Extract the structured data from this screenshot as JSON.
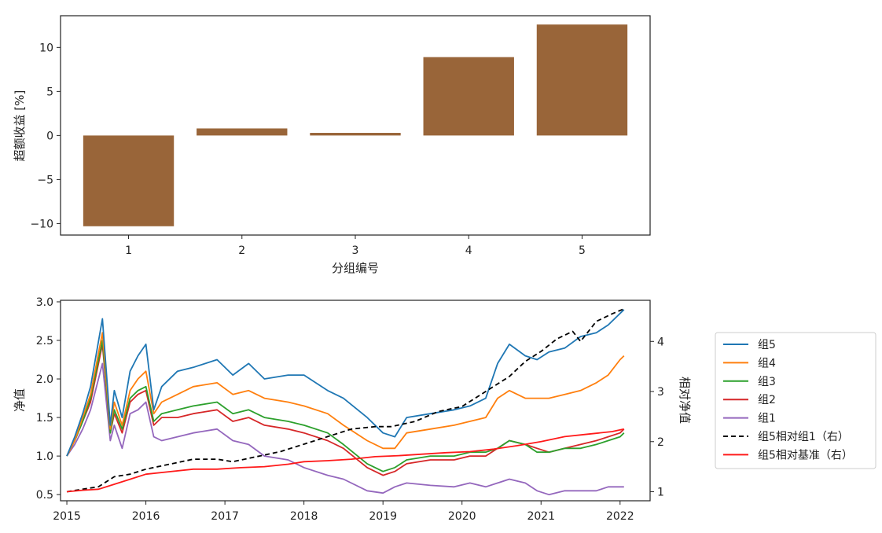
{
  "chart_data": [
    {
      "type": "bar",
      "xlabel": "分组编号",
      "ylabel": "超额收益 [%]",
      "categories": [
        "1",
        "2",
        "3",
        "4",
        "5"
      ],
      "values": [
        -10.3,
        0.8,
        0.3,
        8.9,
        12.6
      ],
      "ylim": [
        -11.3,
        13.6
      ],
      "yticks": [
        -10,
        -5,
        0,
        5,
        10
      ],
      "yticklabels": [
        "−10",
        "−5",
        "0",
        "5",
        "10"
      ],
      "bar_color": "#996539",
      "grid": false
    },
    {
      "type": "line",
      "xlabel": "",
      "ylabel": "净值",
      "y2label": "相对净值",
      "xlim": [
        2014.92,
        2022.38
      ],
      "ylim": [
        0.42,
        3.02
      ],
      "y2lim": [
        0.82,
        4.82
      ],
      "xticks": [
        2015,
        2016,
        2017,
        2018,
        2019,
        2020,
        2021,
        2022
      ],
      "xticklabels": [
        "2015",
        "2016",
        "2017",
        "2018",
        "2019",
        "2020",
        "2021",
        "2022"
      ],
      "yticks": [
        0.5,
        1.0,
        1.5,
        2.0,
        2.5,
        3.0
      ],
      "yticklabels": [
        "0.5",
        "1.0",
        "1.5",
        "2.0",
        "2.5",
        "3.0"
      ],
      "y2ticks": [
        1,
        2,
        3,
        4
      ],
      "y2ticklabels": [
        "1",
        "2",
        "3",
        "4"
      ],
      "legend_position": "outside-right",
      "grid": false,
      "series": [
        {
          "name": "组5",
          "axis": "left",
          "color": "#1f77b4",
          "style": "solid",
          "x": [
            2015.0,
            2015.1,
            2015.2,
            2015.3,
            2015.45,
            2015.55,
            2015.6,
            2015.7,
            2015.8,
            2015.9,
            2016.0,
            2016.1,
            2016.2,
            2016.4,
            2016.6,
            2016.9,
            2017.1,
            2017.3,
            2017.5,
            2017.8,
            2018.0,
            2018.3,
            2018.5,
            2018.8,
            2019.0,
            2019.15,
            2019.3,
            2019.6,
            2019.9,
            2020.1,
            2020.3,
            2020.45,
            2020.6,
            2020.8,
            2020.95,
            2021.1,
            2021.3,
            2021.5,
            2021.7,
            2021.85,
            2022.0,
            2022.05
          ],
          "y": [
            1.0,
            1.25,
            1.55,
            1.9,
            2.78,
            1.4,
            1.85,
            1.5,
            2.1,
            2.3,
            2.45,
            1.6,
            1.9,
            2.1,
            2.15,
            2.25,
            2.05,
            2.2,
            2.0,
            2.05,
            2.05,
            1.85,
            1.75,
            1.5,
            1.3,
            1.25,
            1.5,
            1.55,
            1.6,
            1.65,
            1.75,
            2.2,
            2.45,
            2.3,
            2.25,
            2.35,
            2.4,
            2.55,
            2.6,
            2.7,
            2.85,
            2.9
          ]
        },
        {
          "name": "组4",
          "axis": "left",
          "color": "#ff7f0e",
          "style": "solid",
          "x": [
            2015.0,
            2015.1,
            2015.2,
            2015.3,
            2015.45,
            2015.55,
            2015.6,
            2015.7,
            2015.8,
            2015.9,
            2016.0,
            2016.1,
            2016.2,
            2016.4,
            2016.6,
            2016.9,
            2017.1,
            2017.3,
            2017.5,
            2017.8,
            2018.0,
            2018.3,
            2018.5,
            2018.8,
            2019.0,
            2019.15,
            2019.3,
            2019.6,
            2019.9,
            2020.1,
            2020.3,
            2020.45,
            2020.6,
            2020.8,
            2020.95,
            2021.1,
            2021.3,
            2021.5,
            2021.7,
            2021.85,
            2022.0,
            2022.05
          ],
          "y": [
            1.0,
            1.2,
            1.5,
            1.8,
            2.6,
            1.35,
            1.7,
            1.4,
            1.85,
            2.0,
            2.1,
            1.55,
            1.7,
            1.8,
            1.9,
            1.95,
            1.8,
            1.85,
            1.75,
            1.7,
            1.65,
            1.55,
            1.4,
            1.2,
            1.1,
            1.1,
            1.3,
            1.35,
            1.4,
            1.45,
            1.5,
            1.75,
            1.85,
            1.75,
            1.75,
            1.75,
            1.8,
            1.85,
            1.95,
            2.05,
            2.25,
            2.3
          ]
        },
        {
          "name": "组3",
          "axis": "left",
          "color": "#2ca02c",
          "style": "solid",
          "x": [
            2015.0,
            2015.1,
            2015.2,
            2015.3,
            2015.45,
            2015.55,
            2015.6,
            2015.7,
            2015.8,
            2015.9,
            2016.0,
            2016.1,
            2016.2,
            2016.4,
            2016.6,
            2016.9,
            2017.1,
            2017.3,
            2017.5,
            2017.8,
            2018.0,
            2018.3,
            2018.5,
            2018.8,
            2019.0,
            2019.15,
            2019.3,
            2019.6,
            2019.9,
            2020.1,
            2020.3,
            2020.45,
            2020.6,
            2020.8,
            2020.95,
            2021.1,
            2021.3,
            2021.5,
            2021.7,
            2021.85,
            2022.0,
            2022.05
          ],
          "y": [
            1.0,
            1.2,
            1.45,
            1.75,
            2.5,
            1.3,
            1.6,
            1.35,
            1.75,
            1.85,
            1.9,
            1.45,
            1.55,
            1.6,
            1.65,
            1.7,
            1.55,
            1.6,
            1.5,
            1.45,
            1.4,
            1.3,
            1.15,
            0.9,
            0.8,
            0.85,
            0.95,
            1.0,
            1.0,
            1.05,
            1.05,
            1.1,
            1.2,
            1.15,
            1.05,
            1.05,
            1.1,
            1.1,
            1.15,
            1.2,
            1.25,
            1.3
          ]
        },
        {
          "name": "组2",
          "axis": "left",
          "color": "#d62728",
          "style": "solid",
          "x": [
            2015.0,
            2015.1,
            2015.2,
            2015.3,
            2015.45,
            2015.55,
            2015.6,
            2015.7,
            2015.8,
            2015.9,
            2016.0,
            2016.1,
            2016.2,
            2016.4,
            2016.6,
            2016.9,
            2017.1,
            2017.3,
            2017.5,
            2017.8,
            2018.0,
            2018.3,
            2018.5,
            2018.8,
            2019.0,
            2019.15,
            2019.3,
            2019.6,
            2019.9,
            2020.1,
            2020.3,
            2020.45,
            2020.6,
            2020.8,
            2020.95,
            2021.1,
            2021.3,
            2021.5,
            2021.7,
            2021.85,
            2022.0,
            2022.05
          ],
          "y": [
            1.0,
            1.2,
            1.45,
            1.7,
            2.45,
            1.3,
            1.55,
            1.3,
            1.7,
            1.8,
            1.85,
            1.4,
            1.5,
            1.5,
            1.55,
            1.6,
            1.45,
            1.5,
            1.4,
            1.35,
            1.3,
            1.2,
            1.1,
            0.85,
            0.75,
            0.8,
            0.9,
            0.95,
            0.95,
            1.0,
            1.0,
            1.1,
            1.2,
            1.15,
            1.1,
            1.05,
            1.1,
            1.15,
            1.2,
            1.25,
            1.3,
            1.35
          ]
        },
        {
          "name": "组1",
          "axis": "left",
          "color": "#9467bd",
          "style": "solid",
          "x": [
            2015.0,
            2015.1,
            2015.2,
            2015.3,
            2015.45,
            2015.55,
            2015.6,
            2015.7,
            2015.8,
            2015.9,
            2016.0,
            2016.1,
            2016.2,
            2016.4,
            2016.6,
            2016.9,
            2017.1,
            2017.3,
            2017.5,
            2017.8,
            2018.0,
            2018.3,
            2018.5,
            2018.8,
            2019.0,
            2019.15,
            2019.3,
            2019.6,
            2019.9,
            2020.1,
            2020.3,
            2020.45,
            2020.6,
            2020.8,
            2020.95,
            2021.1,
            2021.3,
            2021.5,
            2021.7,
            2021.85,
            2022.0,
            2022.05
          ],
          "y": [
            1.0,
            1.15,
            1.35,
            1.6,
            2.2,
            1.2,
            1.4,
            1.1,
            1.55,
            1.6,
            1.7,
            1.25,
            1.2,
            1.25,
            1.3,
            1.35,
            1.2,
            1.15,
            1.0,
            0.95,
            0.85,
            0.75,
            0.7,
            0.55,
            0.52,
            0.6,
            0.65,
            0.62,
            0.6,
            0.65,
            0.6,
            0.65,
            0.7,
            0.65,
            0.55,
            0.5,
            0.55,
            0.55,
            0.55,
            0.6,
            0.6,
            0.6
          ]
        },
        {
          "name": "组5相对组1（右）",
          "axis": "right",
          "color": "#000000",
          "style": "dashed",
          "x": [
            2015.0,
            2015.2,
            2015.4,
            2015.6,
            2015.8,
            2016.0,
            2016.3,
            2016.6,
            2016.9,
            2017.1,
            2017.4,
            2017.7,
            2018.0,
            2018.3,
            2018.6,
            2018.9,
            2019.1,
            2019.4,
            2019.7,
            2020.0,
            2020.2,
            2020.4,
            2020.6,
            2020.8,
            2021.0,
            2021.2,
            2021.4,
            2021.5,
            2021.7,
            2021.9,
            2022.05
          ],
          "y": [
            1.0,
            1.05,
            1.1,
            1.3,
            1.35,
            1.45,
            1.55,
            1.65,
            1.65,
            1.6,
            1.7,
            1.8,
            1.95,
            2.1,
            2.25,
            2.3,
            2.3,
            2.4,
            2.6,
            2.7,
            2.9,
            3.1,
            3.3,
            3.6,
            3.8,
            4.05,
            4.2,
            4.0,
            4.4,
            4.55,
            4.65
          ]
        },
        {
          "name": "组5相对基准（右）",
          "axis": "right",
          "color": "#ff1a1a",
          "style": "solid",
          "x": [
            2015.0,
            2015.2,
            2015.4,
            2015.6,
            2015.8,
            2016.0,
            2016.3,
            2016.6,
            2016.9,
            2017.2,
            2017.5,
            2017.8,
            2018.0,
            2018.3,
            2018.6,
            2018.9,
            2019.2,
            2019.5,
            2019.8,
            2020.1,
            2020.4,
            2020.7,
            2021.0,
            2021.3,
            2021.6,
            2021.9,
            2022.05
          ],
          "y": [
            1.0,
            1.03,
            1.05,
            1.15,
            1.25,
            1.35,
            1.4,
            1.45,
            1.45,
            1.48,
            1.5,
            1.55,
            1.6,
            1.62,
            1.65,
            1.7,
            1.72,
            1.75,
            1.78,
            1.8,
            1.85,
            1.92,
            2.0,
            2.1,
            2.15,
            2.2,
            2.25
          ]
        }
      ]
    }
  ]
}
